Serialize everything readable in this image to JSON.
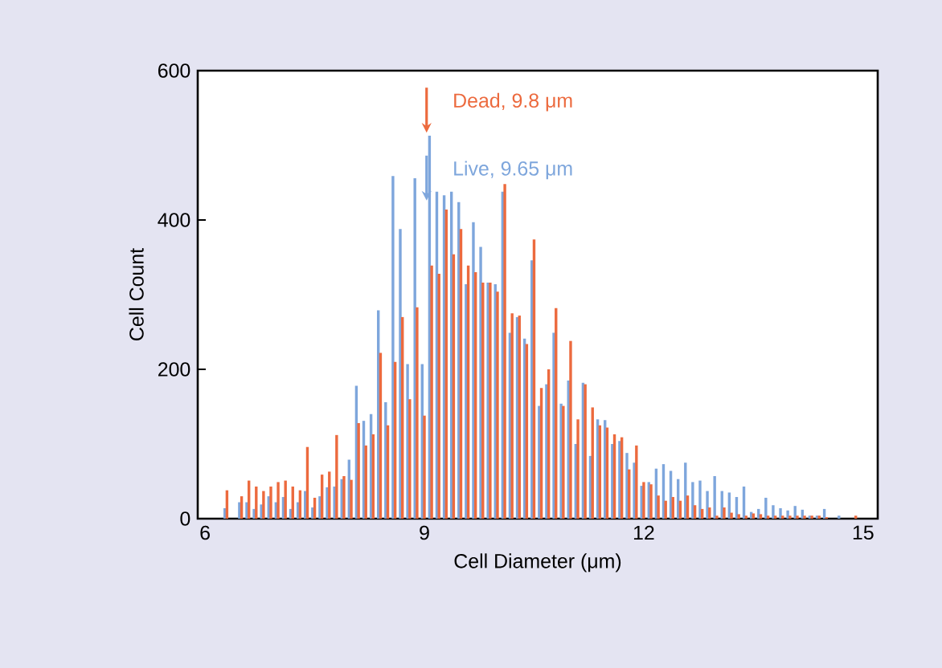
{
  "chart_data": {
    "type": "bar",
    "xlabel": "Cell Diameter (μm)",
    "ylabel": "Cell Count",
    "xlim": [
      5.9,
      15.2
    ],
    "xticks": [
      6,
      9,
      12,
      15
    ],
    "ylim": [
      0,
      600
    ],
    "yticks": [
      0,
      200,
      400,
      600
    ],
    "series": [
      {
        "color": "#ec6a3e",
        "x": [
          6.3,
          6.5,
          6.6,
          6.7,
          6.8,
          6.9,
          7.0,
          7.1,
          7.2,
          7.3,
          7.4,
          7.5,
          7.6,
          7.7,
          7.8,
          7.9,
          8.0,
          8.1,
          8.2,
          8.3,
          8.4,
          8.5,
          8.6,
          8.7,
          8.8,
          8.9,
          9.0,
          9.1,
          9.2,
          9.3,
          9.4,
          9.5,
          9.6,
          9.7,
          9.8,
          9.9,
          10.0,
          10.1,
          10.2,
          10.3,
          10.4,
          10.5,
          10.6,
          10.7,
          10.8,
          10.9,
          11.0,
          11.1,
          11.2,
          11.3,
          11.4,
          11.5,
          11.6,
          11.7,
          11.8,
          11.9,
          12.0,
          12.1,
          12.2,
          12.3,
          12.4,
          12.5,
          12.6,
          12.7,
          12.8,
          12.9,
          13.0,
          13.1,
          13.2,
          13.3,
          13.4,
          13.5,
          13.6,
          13.7,
          13.8,
          13.9,
          14.0,
          14.1,
          14.2,
          14.3,
          14.4,
          14.5,
          14.9
        ],
        "values": [
          38,
          30,
          51,
          43,
          37,
          43,
          49,
          51,
          43,
          38,
          96,
          28,
          59,
          63,
          112,
          57,
          52,
          128,
          98,
          113,
          222,
          125,
          210,
          270,
          160,
          283,
          138,
          339,
          328,
          414,
          354,
          388,
          339,
          330,
          316,
          316,
          304,
          448,
          275,
          272,
          234,
          374,
          175,
          200,
          282,
          151,
          238,
          133,
          180,
          149,
          125,
          122,
          113,
          109,
          66,
          98,
          49,
          46,
          31,
          24,
          29,
          24,
          31,
          18,
          13,
          15,
          4,
          15,
          8,
          6,
          4,
          7,
          6,
          4,
          4,
          4,
          4,
          4,
          4,
          4,
          4,
          2,
          4
        ]
      },
      {
        "color": "#7ea6dc",
        "x": [
          6.27,
          6.47,
          6.57,
          6.67,
          6.77,
          6.87,
          6.97,
          7.07,
          7.17,
          7.27,
          7.37,
          7.47,
          7.57,
          7.67,
          7.77,
          7.87,
          7.97,
          8.07,
          8.17,
          8.27,
          8.37,
          8.47,
          8.57,
          8.67,
          8.77,
          8.87,
          8.97,
          9.07,
          9.17,
          9.27,
          9.37,
          9.47,
          9.57,
          9.67,
          9.77,
          9.87,
          9.97,
          10.07,
          10.17,
          10.27,
          10.37,
          10.47,
          10.57,
          10.67,
          10.77,
          10.87,
          10.97,
          11.07,
          11.17,
          11.27,
          11.37,
          11.47,
          11.57,
          11.67,
          11.77,
          11.87,
          11.97,
          12.07,
          12.17,
          12.27,
          12.37,
          12.47,
          12.57,
          12.67,
          12.77,
          12.87,
          12.97,
          13.07,
          13.17,
          13.27,
          13.37,
          13.47,
          13.57,
          13.67,
          13.77,
          13.87,
          13.97,
          14.07,
          14.17,
          14.27,
          14.37,
          14.47,
          14.67
        ],
        "values": [
          14,
          22,
          22,
          13,
          19,
          30,
          22,
          29,
          13,
          22,
          37,
          15,
          30,
          42,
          43,
          53,
          79,
          178,
          131,
          140,
          279,
          156,
          459,
          388,
          207,
          456,
          207,
          513,
          438,
          433,
          438,
          424,
          314,
          397,
          364,
          316,
          314,
          438,
          249,
          270,
          241,
          346,
          151,
          180,
          249,
          154,
          185,
          100,
          182,
          84,
          133,
          132,
          100,
          104,
          88,
          75,
          44,
          49,
          67,
          73,
          64,
          53,
          75,
          49,
          51,
          37,
          57,
          37,
          35,
          29,
          43,
          9,
          13,
          28,
          18,
          14,
          11,
          17,
          12,
          4,
          4,
          13,
          4
        ]
      }
    ],
    "annotations": [
      {
        "text": "Dead, 9.8 μm",
        "x": 9.03,
        "y": 517
      },
      {
        "text": "Live, 9.65 μm",
        "x": 9.03,
        "y": 426
      }
    ]
  }
}
